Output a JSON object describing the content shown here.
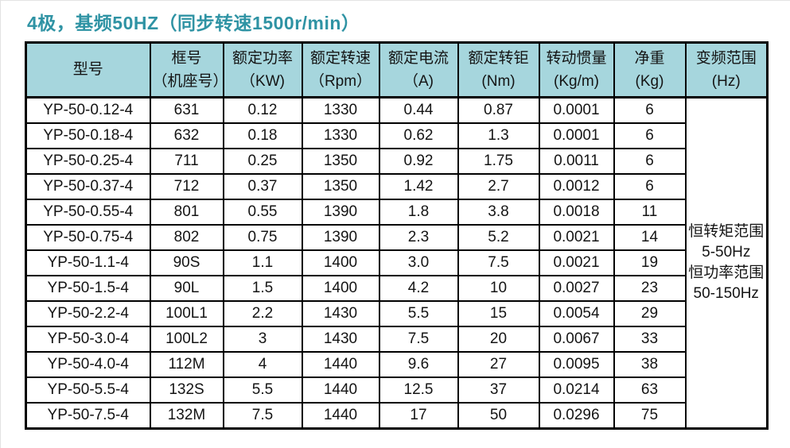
{
  "title": "4极，基频50HZ（同步转速1500r/min）",
  "colors": {
    "title_text": "#2f93a4",
    "header_bg": "#a6d6dd",
    "border": "#000000",
    "body_text": "#141414"
  },
  "table": {
    "columns": [
      {
        "line1": "型号",
        "line2": ""
      },
      {
        "line1": "框号",
        "line2": "（机座号）"
      },
      {
        "line1": "额定功率",
        "line2": "（KW)"
      },
      {
        "line1": "额定转速",
        "line2": "（Rpm）"
      },
      {
        "line1": "额定电流",
        "line2": "（A)"
      },
      {
        "line1": "额定转钜",
        "line2": "(Nm)"
      },
      {
        "line1": "转动惯量",
        "line2": "(Kg/m)"
      },
      {
        "line1": "净重",
        "line2": "(Kg)"
      },
      {
        "line1": "变频范围",
        "line2": "(Hz)"
      }
    ],
    "rows": [
      [
        "YP-50-0.12-4",
        "631",
        "0.12",
        "1330",
        "0.44",
        "0.87",
        "0.0001",
        "6"
      ],
      [
        "YP-50-0.18-4",
        "632",
        "0.18",
        "1330",
        "0.62",
        "1.3",
        "0.0001",
        "6"
      ],
      [
        "YP-50-0.25-4",
        "711",
        "0.25",
        "1350",
        "0.92",
        "1.75",
        "0.0011",
        "6"
      ],
      [
        "YP-50-0.37-4",
        "712",
        "0.37",
        "1350",
        "1.42",
        "2.7",
        "0.0012",
        "6"
      ],
      [
        "YP-50-0.55-4",
        "801",
        "0.55",
        "1390",
        "1.8",
        "3.8",
        "0.0018",
        "11"
      ],
      [
        "YP-50-0.75-4",
        "802",
        "0.75",
        "1390",
        "2.3",
        "5.2",
        "0.0021",
        "14"
      ],
      [
        "YP-50-1.1-4",
        "90S",
        "1.1",
        "1400",
        "3.0",
        "7.5",
        "0.0021",
        "19"
      ],
      [
        "YP-50-1.5-4",
        "90L",
        "1.5",
        "1400",
        "4.2",
        "10",
        "0.0027",
        "23"
      ],
      [
        "YP-50-2.2-4",
        "100L1",
        "2.2",
        "1430",
        "5.5",
        "15",
        "0.0054",
        "29"
      ],
      [
        "YP-50-3.0-4",
        "100L2",
        "3",
        "1430",
        "7.5",
        "20",
        "0.0067",
        "33"
      ],
      [
        "YP-50-4.0-4",
        "112M",
        "4",
        "1440",
        "9.6",
        "27",
        "0.0095",
        "38"
      ],
      [
        "YP-50-5.5-4",
        "132S",
        "5.5",
        "1440",
        "12.5",
        "37",
        "0.0214",
        "63"
      ],
      [
        "YP-50-7.5-4",
        "132M",
        "7.5",
        "1440",
        "17",
        "50",
        "0.0296",
        "75"
      ]
    ],
    "frequency_range_lines": [
      "恒转矩范围",
      "5-50Hz",
      "恒功率范围",
      "50-150Hz"
    ]
  }
}
